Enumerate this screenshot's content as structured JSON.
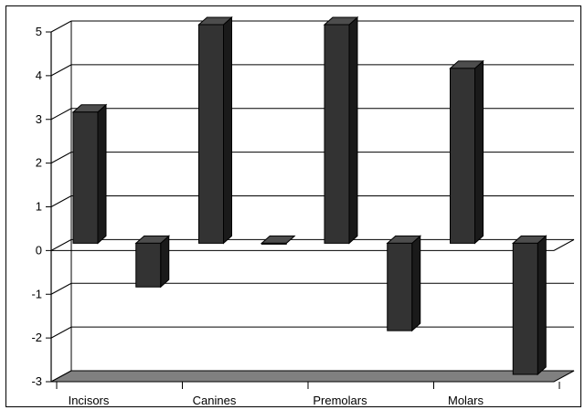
{
  "chart_data": {
    "type": "bar",
    "title": "",
    "xlabel": "",
    "ylabel": "",
    "ylim": [
      -3,
      5
    ],
    "yticks": [
      5,
      4,
      3,
      2,
      1,
      0,
      -1,
      -2,
      -3
    ],
    "grid": true,
    "legend": "none",
    "categories": [
      "Incisors",
      "",
      "Canines",
      "",
      "Premolars",
      "",
      "Molars",
      ""
    ],
    "values": [
      3,
      -1,
      5,
      0,
      5,
      -2,
      4,
      -3
    ],
    "colors": {
      "bar_front": "#333333",
      "bar_side": "#1a1a1a",
      "bar_top": "#4d4d4d",
      "floor": "#808080",
      "grid": "#000000"
    }
  }
}
